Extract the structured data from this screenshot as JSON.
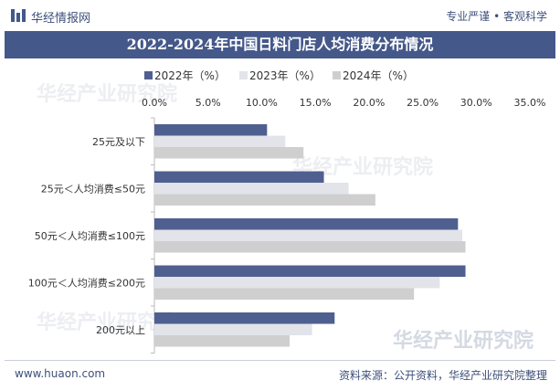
{
  "header": {
    "brand": "华经情报网",
    "slogan": "专业严谨 • 客观科学"
  },
  "footer": {
    "url": "www.huaon.com",
    "source": "资料来源：公开资料，华经产业研究院整理"
  },
  "watermark": "华经产业研究院",
  "colors": {
    "title_bg": "#45588a",
    "series_2022": "#4f5f8f",
    "series_2023": "#e2e4ea",
    "series_2024": "#cfcfd0"
  },
  "chart_data": {
    "type": "bar",
    "orientation": "horizontal",
    "title": "2022-2024年中国日料门店人均消费分布情况",
    "categories": [
      "25元及以下",
      "25元＜人均消费≤50元",
      "50元＜人均消费≤100元",
      "100元＜人均消费≤200元",
      "200元以上"
    ],
    "series": [
      {
        "name": "2022年（%）",
        "values": [
          10.5,
          15.8,
          28.3,
          29.0,
          16.8
        ]
      },
      {
        "name": "2023年（%）",
        "values": [
          12.2,
          18.1,
          28.7,
          26.6,
          14.7
        ]
      },
      {
        "name": "2024年（%）",
        "values": [
          13.9,
          20.6,
          29.0,
          24.2,
          12.6
        ]
      }
    ],
    "xlim": [
      0,
      35
    ],
    "ticks": [
      "0.0%",
      "5.0%",
      "10.0%",
      "15.0%",
      "20.0%",
      "25.0%",
      "30.0%",
      "35.0%"
    ],
    "tick_values": [
      0,
      5,
      10,
      15,
      20,
      25,
      30,
      35
    ],
    "legend_position": "top-left",
    "grid": false
  }
}
